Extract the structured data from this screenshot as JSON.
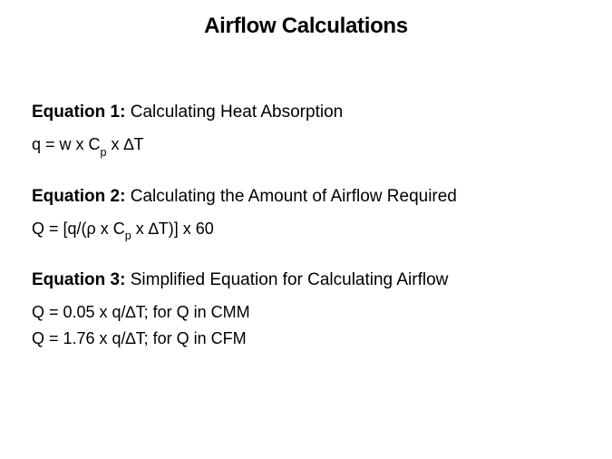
{
  "title": "Airflow Calculations",
  "eq1": {
    "label": "Equation 1:",
    "desc": " Calculating Heat Absorption",
    "f_pre": "q = w x C",
    "f_sub": "p",
    "f_post": " x ∆T"
  },
  "eq2": {
    "label": "Equation 2:",
    "desc": " Calculating the Amount of Airflow Required",
    "f_pre": "Q = [q/(ρ x C",
    "f_sub": "p",
    "f_post": " x ∆T)] x 60"
  },
  "eq3": {
    "label": "Equation 3:",
    "desc": " Simplified Equation for Calculating Airflow",
    "f1": "Q = 0.05 x q/∆T; for Q in CMM",
    "f2": "Q = 1.76 x q/∆T; for Q in CFM"
  }
}
